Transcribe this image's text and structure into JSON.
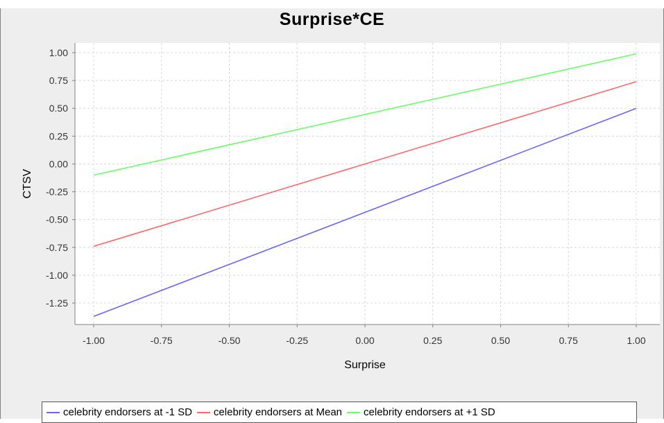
{
  "chart_data": {
    "type": "line",
    "title": "Surprise*CE",
    "xlabel": "Surprise",
    "ylabel": "CTSV",
    "xlim": [
      -1.0,
      1.0
    ],
    "ylim": [
      -1.38,
      1.02
    ],
    "x_ticks": [
      "-1.00",
      "-0.75",
      "-0.50",
      "-0.25",
      "0.00",
      "0.25",
      "0.50",
      "0.75",
      "1.00"
    ],
    "y_ticks": [
      "1.00",
      "0.75",
      "0.50",
      "0.25",
      "0.00",
      "-0.25",
      "-0.50",
      "-0.75",
      "-1.00",
      "-1.25"
    ],
    "grid": true,
    "legend_position": "bottom",
    "series": [
      {
        "name": "celebrity endorsers at -1 SD",
        "color": "#6666ff",
        "x": [
          -1.0,
          1.0
        ],
        "y": [
          -1.37,
          0.5
        ]
      },
      {
        "name": "celebrity endorsers at Mean",
        "color": "#ff6666",
        "x": [
          -1.0,
          1.0
        ],
        "y": [
          -0.74,
          0.74
        ]
      },
      {
        "name": "celebrity endorsers at +1 SD",
        "color": "#66ff66",
        "x": [
          -1.0,
          1.0
        ],
        "y": [
          -0.1,
          0.99
        ]
      }
    ]
  }
}
